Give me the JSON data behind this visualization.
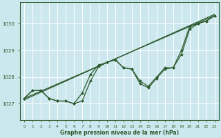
{
  "bg_color": "#cce8ee",
  "grid_color": "#ffffff",
  "line_color": "#2d5a2d",
  "marker_color": "#2d5a2d",
  "xlabel": "Graphe pression niveau de la mer (hPa)",
  "ylim": [
    1026.4,
    1030.8
  ],
  "xlim": [
    -0.5,
    23.5
  ],
  "yticks": [
    1027,
    1028,
    1029,
    1030
  ],
  "xticks": [
    0,
    1,
    2,
    3,
    4,
    5,
    6,
    7,
    8,
    9,
    10,
    11,
    12,
    13,
    14,
    15,
    16,
    17,
    18,
    19,
    20,
    21,
    22,
    23
  ],
  "series": [
    {
      "x": [
        0,
        1,
        2,
        3,
        4,
        5,
        6,
        7,
        8,
        9,
        10,
        11,
        12,
        13,
        14,
        15,
        16,
        17,
        18,
        19,
        20,
        21,
        22,
        23
      ],
      "y": [
        1027.2,
        1027.5,
        1027.5,
        1027.2,
        1027.1,
        1027.1,
        1027.0,
        1027.1,
        1027.85,
        1028.4,
        1028.55,
        1028.65,
        1028.35,
        1028.3,
        1027.75,
        1027.6,
        1027.95,
        1028.3,
        1028.35,
        1028.85,
        1029.8,
        1030.0,
        1030.1,
        1030.3
      ],
      "marker": true,
      "lw": 0.9
    },
    {
      "x": [
        0,
        1,
        2,
        3,
        4,
        5,
        6,
        7,
        8,
        9,
        10,
        11,
        12,
        13,
        14,
        15,
        16,
        17,
        18,
        19,
        20,
        21,
        22,
        23
      ],
      "y": [
        1027.2,
        1027.5,
        1027.5,
        1027.2,
        1027.1,
        1027.1,
        1027.0,
        1027.4,
        1028.1,
        1028.45,
        1028.55,
        1028.65,
        1028.35,
        1028.3,
        1027.85,
        1027.65,
        1028.0,
        1028.35,
        1028.35,
        1029.0,
        1029.9,
        1030.0,
        1030.1,
        1030.3
      ],
      "marker": true,
      "lw": 0.9
    },
    {
      "x": [
        0,
        23
      ],
      "y": [
        1027.2,
        1030.3
      ],
      "marker": false,
      "lw": 0.9
    },
    {
      "x": [
        0,
        23
      ],
      "y": [
        1027.15,
        1030.35
      ],
      "marker": false,
      "lw": 0.9
    }
  ]
}
